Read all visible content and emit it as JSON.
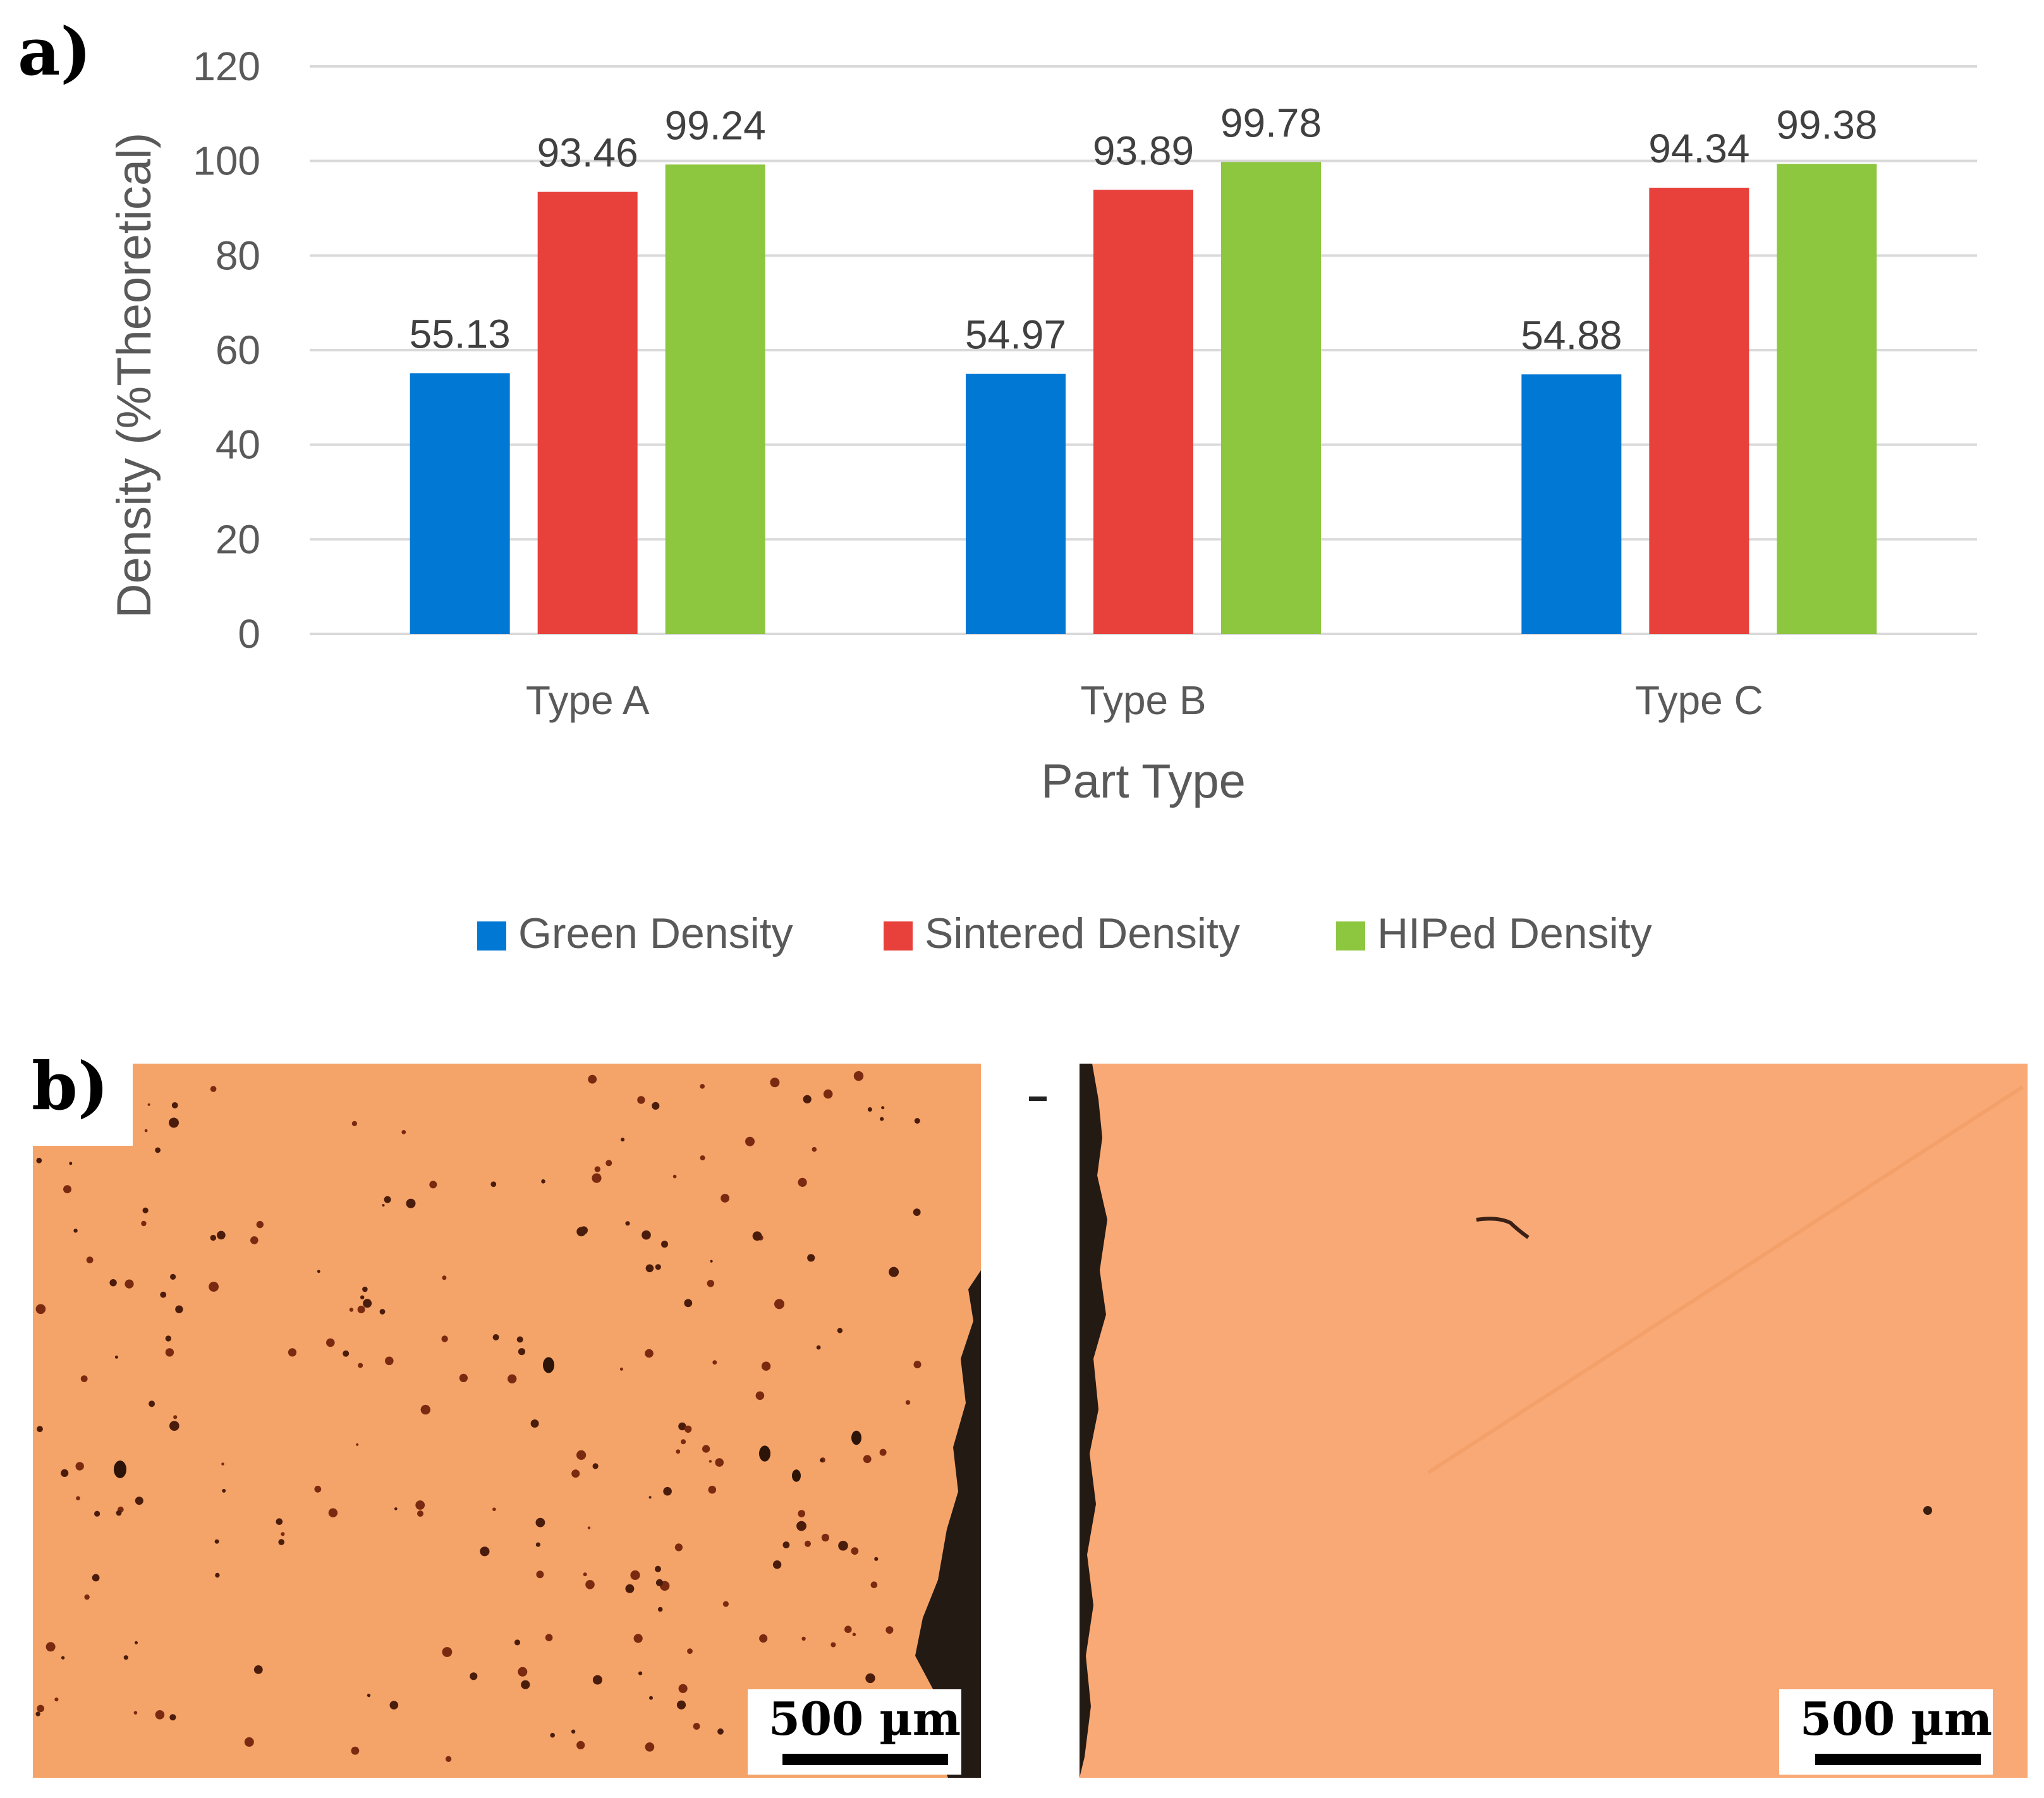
{
  "panel_a_label": "a)",
  "panel_b_label": "b)",
  "chart_data": {
    "type": "bar",
    "categories": [
      "Type A",
      "Type B",
      "Type C"
    ],
    "series": [
      {
        "name": "Green Density",
        "color": "#0078d4",
        "values": [
          55.13,
          54.97,
          54.88
        ],
        "labels": [
          "55.13",
          "54.97",
          "54.88"
        ]
      },
      {
        "name": "Sintered Density",
        "color": "#e8413c",
        "values": [
          93.46,
          93.89,
          94.34
        ],
        "labels": [
          "93.46",
          "93.89",
          "94.34"
        ]
      },
      {
        "name": "HIPed Density",
        "color": "#8dc63f",
        "values": [
          99.24,
          99.78,
          99.38
        ],
        "labels": [
          "99.24",
          "99.78",
          "99.38"
        ]
      }
    ],
    "xlabel": "Part Type",
    "ylabel": "Density (%Theoretical)",
    "ylim": [
      0,
      120
    ],
    "yticks": [
      "0",
      "20",
      "40",
      "60",
      "80",
      "100",
      "120"
    ],
    "grid": true,
    "legend_position": "bottom"
  },
  "micrographs": {
    "left": {
      "scale_bar_label": "500 µm",
      "color": "#f5a469",
      "edge": "right"
    },
    "right": {
      "scale_bar_label": "500 µm",
      "color": "#f9a975",
      "edge": "left"
    }
  }
}
